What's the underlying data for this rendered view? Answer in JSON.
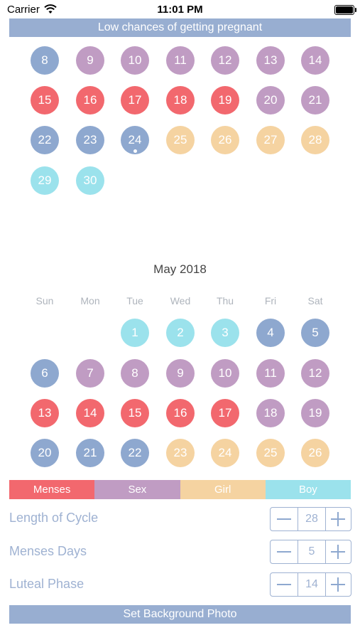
{
  "status_bar": {
    "carrier": "Carrier",
    "time": "11:01 PM"
  },
  "banner": {
    "text": "Low chances of getting pregnant"
  },
  "prev_month": {
    "rows": [
      [
        {
          "day": "8",
          "type": "blue"
        },
        {
          "day": "9",
          "type": "purple"
        },
        {
          "day": "10",
          "type": "purple"
        },
        {
          "day": "11",
          "type": "purple"
        },
        {
          "day": "12",
          "type": "purple"
        },
        {
          "day": "13",
          "type": "purple"
        },
        {
          "day": "14",
          "type": "purple"
        }
      ],
      [
        {
          "day": "15",
          "type": "red"
        },
        {
          "day": "16",
          "type": "red"
        },
        {
          "day": "17",
          "type": "red"
        },
        {
          "day": "18",
          "type": "red"
        },
        {
          "day": "19",
          "type": "red"
        },
        {
          "day": "20",
          "type": "purple"
        },
        {
          "day": "21",
          "type": "purple"
        }
      ],
      [
        {
          "day": "22",
          "type": "blue"
        },
        {
          "day": "23",
          "type": "blue"
        },
        {
          "day": "24",
          "type": "blue",
          "today": true
        },
        {
          "day": "25",
          "type": "orange"
        },
        {
          "day": "26",
          "type": "orange"
        },
        {
          "day": "27",
          "type": "orange"
        },
        {
          "day": "28",
          "type": "orange"
        }
      ],
      [
        {
          "day": "29",
          "type": "cyan"
        },
        {
          "day": "30",
          "type": "cyan"
        }
      ]
    ]
  },
  "month": {
    "title": "May 2018",
    "weekdays": [
      "Sun",
      "Mon",
      "Tue",
      "Wed",
      "Thu",
      "Fri",
      "Sat"
    ],
    "rows": [
      [
        null,
        null,
        {
          "day": "1",
          "type": "cyan"
        },
        {
          "day": "2",
          "type": "cyan"
        },
        {
          "day": "3",
          "type": "cyan"
        },
        {
          "day": "4",
          "type": "blue"
        },
        {
          "day": "5",
          "type": "blue"
        }
      ],
      [
        {
          "day": "6",
          "type": "blue"
        },
        {
          "day": "7",
          "type": "purple"
        },
        {
          "day": "8",
          "type": "purple"
        },
        {
          "day": "9",
          "type": "purple"
        },
        {
          "day": "10",
          "type": "purple"
        },
        {
          "day": "11",
          "type": "purple"
        },
        {
          "day": "12",
          "type": "purple"
        }
      ],
      [
        {
          "day": "13",
          "type": "red"
        },
        {
          "day": "14",
          "type": "red"
        },
        {
          "day": "15",
          "type": "red"
        },
        {
          "day": "16",
          "type": "red"
        },
        {
          "day": "17",
          "type": "red"
        },
        {
          "day": "18",
          "type": "purple"
        },
        {
          "day": "19",
          "type": "purple"
        }
      ],
      [
        {
          "day": "20",
          "type": "blue"
        },
        {
          "day": "21",
          "type": "blue"
        },
        {
          "day": "22",
          "type": "blue"
        },
        {
          "day": "23",
          "type": "orange"
        },
        {
          "day": "24",
          "type": "orange"
        },
        {
          "day": "25",
          "type": "orange"
        },
        {
          "day": "26",
          "type": "orange"
        }
      ]
    ]
  },
  "legend": [
    {
      "label": "Menses",
      "color": "#f2686e"
    },
    {
      "label": "Sex",
      "color": "#c09cc3"
    },
    {
      "label": "Girl",
      "color": "#f5d3a1"
    },
    {
      "label": "Boy",
      "color": "#9be2ec"
    }
  ],
  "settings": [
    {
      "label": "Length of Cycle",
      "value": "28"
    },
    {
      "label": "Menses Days",
      "value": "5"
    },
    {
      "label": "Luteal Phase",
      "value": "14"
    }
  ],
  "set_photo_button": "Set Background Photo",
  "colors": {
    "blue": "#8ea8cf",
    "purple": "#c09cc3",
    "red": "#f2686e",
    "orange": "#f5d3a1",
    "cyan": "#9be2ec",
    "accent": "#98aed1"
  },
  "icons": {
    "wifi": "wifi-icon",
    "battery": "battery-icon",
    "minus": "minus-icon",
    "plus": "plus-icon"
  }
}
